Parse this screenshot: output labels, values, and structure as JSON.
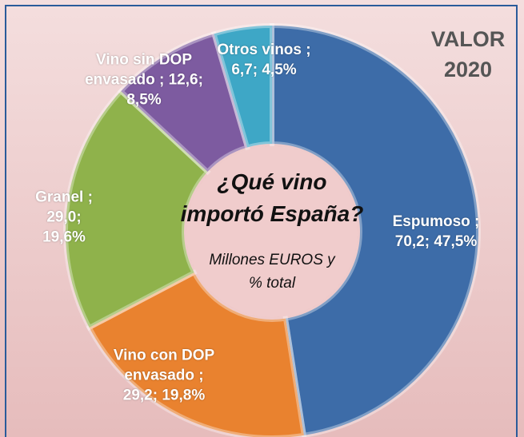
{
  "chart_data": {
    "type": "donut",
    "title": "¿Qué vino importó España?",
    "subtitle": "Millones EUROS y % total",
    "annotation": "VALOR 2020",
    "separator": ";",
    "categories": [
      "Espumoso",
      "Vino con DOP envasado",
      "Granel",
      "Vino sin DOP envasado",
      "Otros vinos"
    ],
    "values": [
      70.2,
      29.2,
      29.0,
      12.6,
      6.7
    ],
    "value_labels": [
      "70,2",
      "29,2",
      "29,0",
      "12,6",
      "6,7"
    ],
    "percents": [
      47.5,
      19.8,
      19.6,
      8.5,
      4.5
    ],
    "percent_labels": [
      "47,5%",
      "19,8%",
      "19,6%",
      "8,5%",
      "4,5%"
    ],
    "colors": [
      "#3d6ca8",
      "#e9822f",
      "#8fb24b",
      "#7d5ba0",
      "#3ea7c6"
    ]
  }
}
